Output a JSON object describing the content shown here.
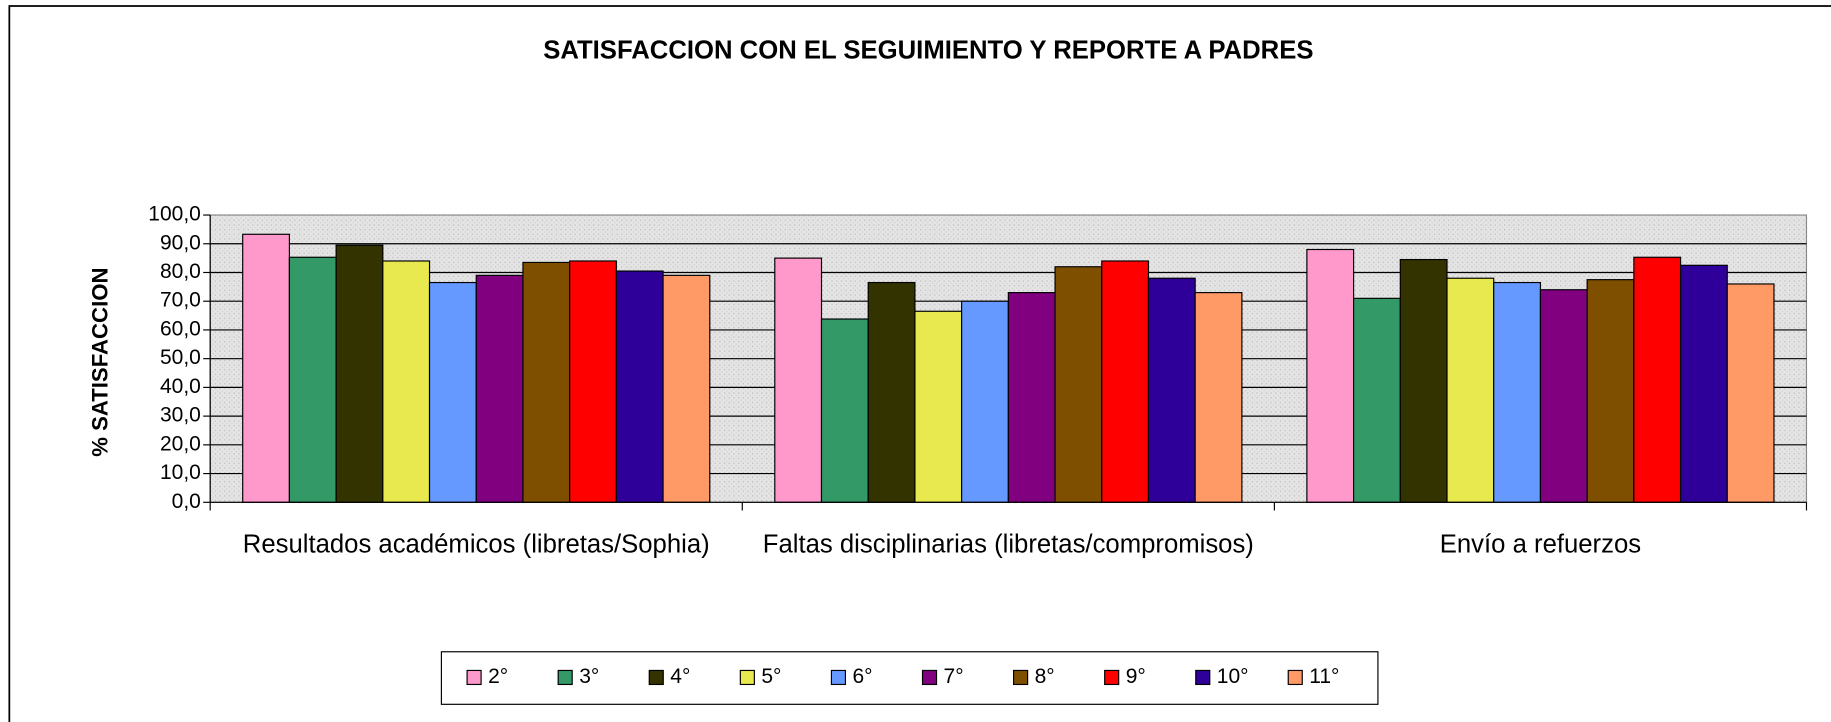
{
  "chart_data": {
    "type": "bar",
    "title": "SATISFACCION CON EL SEGUIMIENTO Y REPORTE A PADRES",
    "y_label": "% SATISFACCION",
    "categories": [
      "Resultados académicos (libretas/Sophia)",
      "Faltas disciplinarias (libretas/compromisos)",
      "Envío a refuerzos"
    ],
    "series": [
      {
        "name": "2°",
        "color": "#ff99cc",
        "values": [
          93.3,
          85,
          88
        ]
      },
      {
        "name": "3°",
        "color": "#339966",
        "values": [
          85.3,
          63.8,
          71
        ]
      },
      {
        "name": "4°",
        "color": "#333300",
        "values": [
          89.5,
          76.5,
          84.5
        ]
      },
      {
        "name": "5°",
        "color": "#e8e84f",
        "values": [
          84,
          66.5,
          78
        ]
      },
      {
        "name": "6°",
        "color": "#6699ff",
        "values": [
          76.5,
          70,
          76.5
        ]
      },
      {
        "name": "7°",
        "color": "#800080",
        "values": [
          79,
          73,
          74
        ]
      },
      {
        "name": "8°",
        "color": "#7f4f00",
        "values": [
          83.5,
          82,
          77.5
        ]
      },
      {
        "name": "9°",
        "color": "#ff0000",
        "values": [
          84,
          84,
          85.3
        ]
      },
      {
        "name": "10°",
        "color": "#2e0099",
        "values": [
          80.5,
          78,
          82.5
        ]
      },
      {
        "name": "11°",
        "color": "#ff9966",
        "values": [
          79,
          73,
          76
        ]
      }
    ],
    "ylim": [
      0,
      100
    ],
    "yticks": [
      {
        "value": 0,
        "label": "0,0"
      },
      {
        "value": 10,
        "label": "10,0"
      },
      {
        "value": 20,
        "label": "20,0"
      },
      {
        "value": 30,
        "label": "30,0"
      },
      {
        "value": 40,
        "label": "40,0"
      },
      {
        "value": 50,
        "label": "50,0"
      },
      {
        "value": 60,
        "label": "60,0"
      },
      {
        "value": 70,
        "label": "70,0"
      },
      {
        "value": 80,
        "label": "80,0"
      },
      {
        "value": 90,
        "label": "90,0"
      },
      {
        "value": 100,
        "label": "100,0"
      }
    ],
    "grid": true,
    "legend": "bottom"
  }
}
